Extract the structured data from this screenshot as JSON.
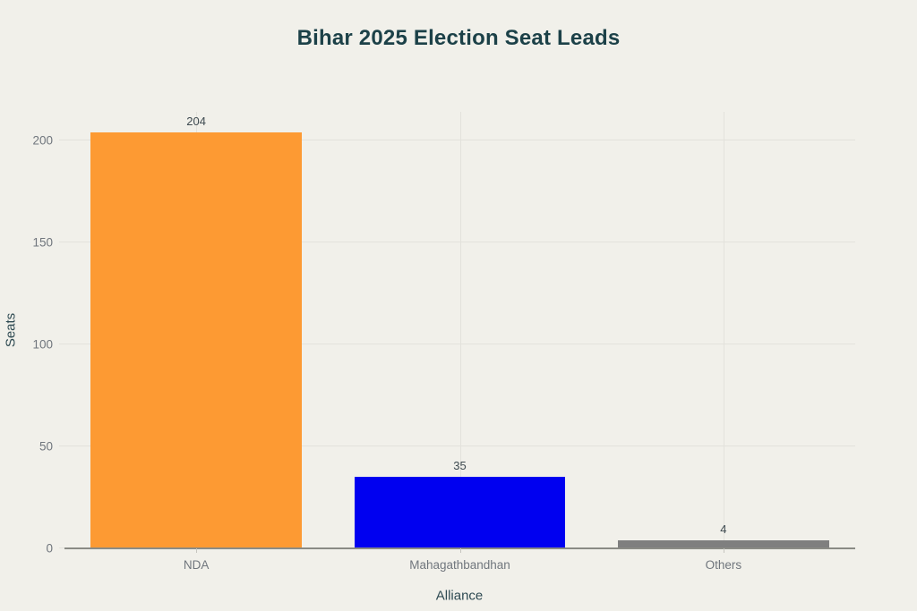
{
  "title": "Bihar 2025 Election Seat Leads",
  "chart_data": {
    "type": "bar",
    "title": "Bihar 2025 Election Seat Leads",
    "xlabel": "Alliance",
    "ylabel": "Seats",
    "categories": [
      "NDA",
      "Mahagathbandhan",
      "Others"
    ],
    "values": [
      204,
      35,
      4
    ],
    "bar_colors": [
      "#FD9A33",
      "#0000F0",
      "#7F7F7F"
    ],
    "yticks": [
      0,
      50,
      100,
      150,
      200
    ],
    "ylim": [
      0,
      214
    ],
    "grid": true,
    "legend": "none",
    "value_labels_shown": true
  },
  "colors": {
    "background": "#F1F0EA",
    "title": "#1C4148",
    "axis_label": "#2E4A52",
    "tick_label": "#70767D",
    "value_label": "#3E4A50",
    "gridline": "#E3E2DC",
    "axis_line": "#8A8B85"
  }
}
